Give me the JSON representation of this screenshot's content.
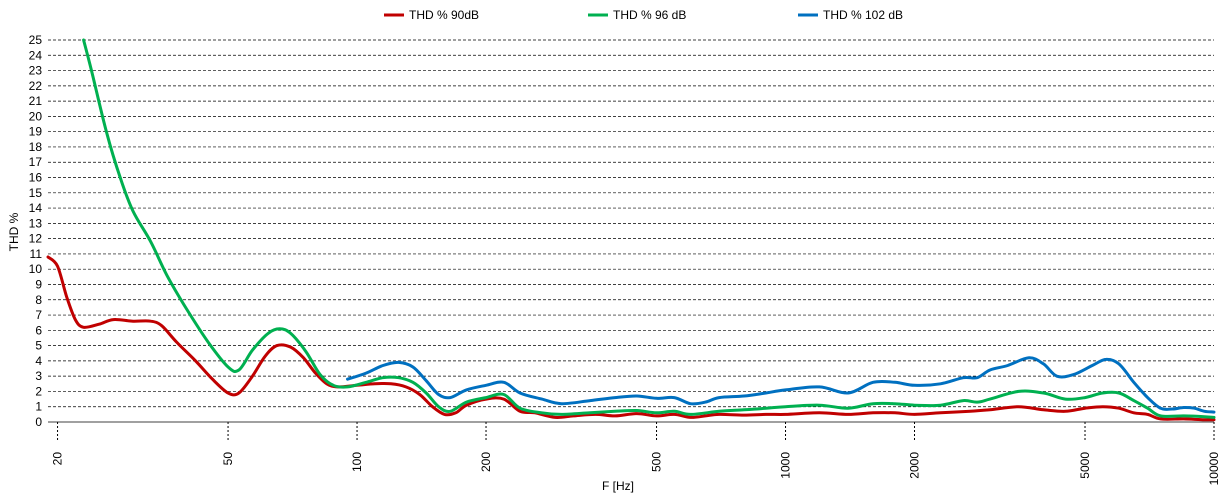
{
  "chart_data": {
    "type": "line",
    "xlabel": "F [Hz]",
    "ylabel": "THD %",
    "xscale": "log",
    "xlim": [
      19,
      10000
    ],
    "ylim": [
      0,
      25
    ],
    "x_ticks": [
      20,
      50,
      100,
      200,
      500,
      1000,
      2000,
      5000,
      10000
    ],
    "x_tick_labels": [
      "20",
      "50",
      "100",
      "200",
      "500",
      "1000",
      "2000",
      "5000",
      "10000"
    ],
    "y_ticks": [
      0,
      1,
      2,
      3,
      4,
      5,
      6,
      7,
      8,
      9,
      10,
      11,
      12,
      13,
      14,
      15,
      16,
      17,
      18,
      19,
      20,
      21,
      22,
      23,
      24,
      25
    ],
    "y_tick_labels": [
      "0",
      "1",
      "2",
      "3",
      "4",
      "5",
      "6",
      "7",
      "8",
      "9",
      "10",
      "11",
      "12",
      "13",
      "14",
      "15",
      "16",
      "17",
      "18",
      "19",
      "20",
      "21",
      "22",
      "23",
      "24",
      "25"
    ],
    "grid": "horizontal dashed",
    "legend_position": "top",
    "series": [
      {
        "name": "THD % 90dB",
        "color": "#c00000",
        "points": [
          [
            19,
            10.8
          ],
          [
            20,
            10.2
          ],
          [
            21,
            8.2
          ],
          [
            22,
            6.7
          ],
          [
            23,
            6.2
          ],
          [
            25,
            6.4
          ],
          [
            27,
            6.7
          ],
          [
            30,
            6.6
          ],
          [
            33,
            6.6
          ],
          [
            35,
            6.3
          ],
          [
            38,
            5.2
          ],
          [
            42,
            4.0
          ],
          [
            46,
            2.8
          ],
          [
            50,
            1.9
          ],
          [
            53,
            1.9
          ],
          [
            57,
            3.0
          ],
          [
            61,
            4.3
          ],
          [
            65,
            5.0
          ],
          [
            70,
            4.9
          ],
          [
            75,
            4.2
          ],
          [
            80,
            3.2
          ],
          [
            85,
            2.5
          ],
          [
            90,
            2.3
          ],
          [
            100,
            2.4
          ],
          [
            110,
            2.5
          ],
          [
            120,
            2.5
          ],
          [
            130,
            2.3
          ],
          [
            140,
            1.8
          ],
          [
            150,
            1.0
          ],
          [
            160,
            0.5
          ],
          [
            170,
            0.6
          ],
          [
            180,
            1.1
          ],
          [
            200,
            1.5
          ],
          [
            220,
            1.5
          ],
          [
            240,
            0.7
          ],
          [
            260,
            0.6
          ],
          [
            290,
            0.3
          ],
          [
            320,
            0.4
          ],
          [
            360,
            0.5
          ],
          [
            400,
            0.4
          ],
          [
            450,
            0.55
          ],
          [
            500,
            0.4
          ],
          [
            550,
            0.5
          ],
          [
            600,
            0.3
          ],
          [
            650,
            0.4
          ],
          [
            700,
            0.5
          ],
          [
            800,
            0.45
          ],
          [
            900,
            0.5
          ],
          [
            1000,
            0.5
          ],
          [
            1200,
            0.6
          ],
          [
            1400,
            0.5
          ],
          [
            1600,
            0.6
          ],
          [
            1800,
            0.6
          ],
          [
            2000,
            0.5
          ],
          [
            2300,
            0.6
          ],
          [
            2700,
            0.7
          ],
          [
            3000,
            0.8
          ],
          [
            3500,
            1.0
          ],
          [
            4000,
            0.8
          ],
          [
            4500,
            0.7
          ],
          [
            5000,
            0.9
          ],
          [
            5500,
            1.0
          ],
          [
            6000,
            0.9
          ],
          [
            6500,
            0.6
          ],
          [
            7000,
            0.5
          ],
          [
            7500,
            0.2
          ],
          [
            8500,
            0.2
          ],
          [
            9500,
            0.15
          ],
          [
            10000,
            0.15
          ]
        ]
      },
      {
        "name": "THD % 96 dB",
        "color": "#00b050",
        "points": [
          [
            23,
            25.0
          ],
          [
            24,
            23.0
          ],
          [
            26,
            19.0
          ],
          [
            28,
            16.0
          ],
          [
            30,
            13.8
          ],
          [
            33,
            11.8
          ],
          [
            36,
            9.6
          ],
          [
            40,
            7.4
          ],
          [
            45,
            5.2
          ],
          [
            50,
            3.6
          ],
          [
            53,
            3.4
          ],
          [
            57,
            4.7
          ],
          [
            62,
            5.8
          ],
          [
            66,
            6.1
          ],
          [
            70,
            5.8
          ],
          [
            76,
            4.6
          ],
          [
            82,
            3.1
          ],
          [
            88,
            2.4
          ],
          [
            95,
            2.3
          ],
          [
            105,
            2.6
          ],
          [
            115,
            2.9
          ],
          [
            125,
            2.9
          ],
          [
            135,
            2.6
          ],
          [
            145,
            1.9
          ],
          [
            155,
            1.0
          ],
          [
            165,
            0.7
          ],
          [
            180,
            1.3
          ],
          [
            200,
            1.6
          ],
          [
            220,
            1.8
          ],
          [
            240,
            0.9
          ],
          [
            270,
            0.6
          ],
          [
            300,
            0.5
          ],
          [
            350,
            0.6
          ],
          [
            400,
            0.7
          ],
          [
            450,
            0.75
          ],
          [
            500,
            0.6
          ],
          [
            550,
            0.7
          ],
          [
            600,
            0.5
          ],
          [
            700,
            0.7
          ],
          [
            800,
            0.8
          ],
          [
            900,
            0.9
          ],
          [
            1000,
            1.0
          ],
          [
            1200,
            1.1
          ],
          [
            1400,
            0.9
          ],
          [
            1600,
            1.2
          ],
          [
            1800,
            1.2
          ],
          [
            2000,
            1.1
          ],
          [
            2300,
            1.1
          ],
          [
            2600,
            1.4
          ],
          [
            2800,
            1.3
          ],
          [
            3000,
            1.5
          ],
          [
            3500,
            2.0
          ],
          [
            4000,
            1.9
          ],
          [
            4500,
            1.5
          ],
          [
            5000,
            1.6
          ],
          [
            5500,
            1.9
          ],
          [
            6000,
            1.9
          ],
          [
            6500,
            1.4
          ],
          [
            7000,
            0.9
          ],
          [
            7500,
            0.4
          ],
          [
            8500,
            0.4
          ],
          [
            9500,
            0.35
          ],
          [
            10000,
            0.3
          ]
        ]
      },
      {
        "name": "THD % 102 dB",
        "color": "#0070c0",
        "points": [
          [
            95,
            2.8
          ],
          [
            105,
            3.2
          ],
          [
            115,
            3.7
          ],
          [
            125,
            3.9
          ],
          [
            135,
            3.6
          ],
          [
            145,
            2.7
          ],
          [
            155,
            1.8
          ],
          [
            165,
            1.6
          ],
          [
            180,
            2.1
          ],
          [
            200,
            2.4
          ],
          [
            220,
            2.6
          ],
          [
            240,
            1.9
          ],
          [
            270,
            1.5
          ],
          [
            300,
            1.2
          ],
          [
            350,
            1.4
          ],
          [
            400,
            1.6
          ],
          [
            450,
            1.7
          ],
          [
            500,
            1.55
          ],
          [
            550,
            1.6
          ],
          [
            600,
            1.2
          ],
          [
            650,
            1.3
          ],
          [
            700,
            1.6
          ],
          [
            800,
            1.7
          ],
          [
            900,
            1.9
          ],
          [
            1000,
            2.1
          ],
          [
            1200,
            2.3
          ],
          [
            1400,
            1.9
          ],
          [
            1600,
            2.6
          ],
          [
            1800,
            2.6
          ],
          [
            2000,
            2.4
          ],
          [
            2300,
            2.5
          ],
          [
            2600,
            2.9
          ],
          [
            2800,
            2.9
          ],
          [
            3000,
            3.4
          ],
          [
            3300,
            3.7
          ],
          [
            3700,
            4.2
          ],
          [
            4000,
            3.8
          ],
          [
            4300,
            3.0
          ],
          [
            4700,
            3.1
          ],
          [
            5200,
            3.7
          ],
          [
            5600,
            4.1
          ],
          [
            6000,
            3.8
          ],
          [
            6500,
            2.6
          ],
          [
            7000,
            1.6
          ],
          [
            7500,
            0.9
          ],
          [
            8000,
            0.85
          ],
          [
            8500,
            0.95
          ],
          [
            9000,
            0.9
          ],
          [
            9500,
            0.7
          ],
          [
            10000,
            0.65
          ]
        ]
      }
    ]
  }
}
